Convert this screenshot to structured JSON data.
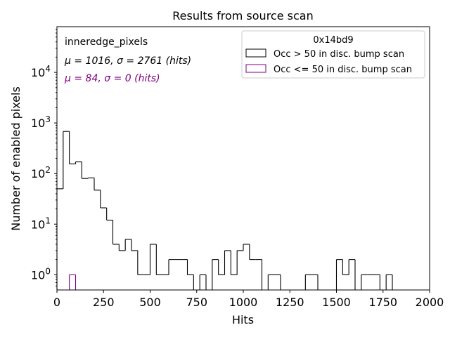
{
  "chart_data": {
    "type": "histogram",
    "title": "Results from source scan",
    "xlabel": "Hits",
    "ylabel": "Number of enabled pixels",
    "xlim": [
      0,
      2000
    ],
    "ylim": [
      0.5,
      80000
    ],
    "yscale": "log",
    "grid": false,
    "xticks": [
      0,
      250,
      500,
      750,
      1000,
      1250,
      1500,
      1750,
      2000
    ],
    "xtick_labels": [
      "0",
      "250",
      "500",
      "750",
      "1000",
      "1250",
      "1500",
      "1750",
      "2000"
    ],
    "yticks": [
      1,
      10,
      100,
      1000,
      10000
    ],
    "ytick_labels": [
      {
        "base": "10",
        "exp": "0"
      },
      {
        "base": "10",
        "exp": "1"
      },
      {
        "base": "10",
        "exp": "2"
      },
      {
        "base": "10",
        "exp": "3"
      },
      {
        "base": "10",
        "exp": "4"
      }
    ],
    "bin_width": 33.33,
    "annotations": [
      {
        "text": "inneredge_pixels",
        "color": "#000000"
      },
      {
        "text": "μ = 1016, σ = 2761 (hits)",
        "color": "#000000"
      },
      {
        "text": "μ = 84, σ = 0 (hits)",
        "color": "#800080"
      }
    ],
    "legend": {
      "title": "0x14bd9",
      "position": "top-right",
      "entries": [
        "Occ > 50 in disc. bump scan",
        "Occ <= 50 in disc. bump scan"
      ]
    },
    "series": [
      {
        "name": "Occ > 50 in disc. bump scan",
        "color": "#000000",
        "bins": [
          [
            0,
            33.33,
            50
          ],
          [
            33.33,
            66.67,
            680
          ],
          [
            66.67,
            100,
            155
          ],
          [
            100,
            133.33,
            170
          ],
          [
            133.33,
            166.67,
            80
          ],
          [
            166.67,
            200,
            82
          ],
          [
            200,
            233.33,
            47
          ],
          [
            233.33,
            266.67,
            21
          ],
          [
            266.67,
            300,
            12
          ],
          [
            300,
            333.33,
            4
          ],
          [
            333.33,
            366.67,
            3
          ],
          [
            366.67,
            400,
            5
          ],
          [
            400,
            433.33,
            3
          ],
          [
            433.33,
            466.67,
            1
          ],
          [
            466.67,
            500,
            1
          ],
          [
            500,
            533.33,
            4
          ],
          [
            533.33,
            566.67,
            1
          ],
          [
            566.67,
            600,
            1
          ],
          [
            600,
            633.33,
            2
          ],
          [
            633.33,
            666.67,
            2
          ],
          [
            666.67,
            700,
            2
          ],
          [
            700,
            733.33,
            1
          ],
          [
            733.33,
            766.67,
            0
          ],
          [
            766.67,
            800,
            1
          ],
          [
            800,
            833.33,
            0
          ],
          [
            833.33,
            866.67,
            2
          ],
          [
            866.67,
            900,
            1
          ],
          [
            900,
            933.33,
            3
          ],
          [
            933.33,
            966.67,
            1
          ],
          [
            966.67,
            1000,
            3
          ],
          [
            1000,
            1033.33,
            4
          ],
          [
            1033.33,
            1066.67,
            2
          ],
          [
            1066.67,
            1100,
            2
          ],
          [
            1100,
            1133.33,
            0
          ],
          [
            1133.33,
            1166.67,
            1
          ],
          [
            1166.67,
            1200,
            1
          ],
          [
            1200,
            1233.33,
            0
          ],
          [
            1233.33,
            1266.67,
            0
          ],
          [
            1266.67,
            1300,
            0
          ],
          [
            1300,
            1333.33,
            0
          ],
          [
            1333.33,
            1366.67,
            1
          ],
          [
            1366.67,
            1400,
            1
          ],
          [
            1400,
            1433.33,
            0
          ],
          [
            1433.33,
            1466.67,
            0
          ],
          [
            1466.67,
            1500,
            0
          ],
          [
            1500,
            1533.33,
            2
          ],
          [
            1533.33,
            1566.67,
            1
          ],
          [
            1566.67,
            1600,
            2
          ],
          [
            1600,
            1633.33,
            0
          ],
          [
            1633.33,
            1666.67,
            1
          ],
          [
            1666.67,
            1700,
            1
          ],
          [
            1700,
            1733.33,
            1
          ],
          [
            1733.33,
            1766.67,
            0
          ],
          [
            1766.67,
            1800,
            1
          ]
        ]
      },
      {
        "name": "Occ <= 50 in disc. bump scan",
        "color": "#800080",
        "bins": [
          [
            66.67,
            100,
            1
          ]
        ]
      }
    ]
  }
}
